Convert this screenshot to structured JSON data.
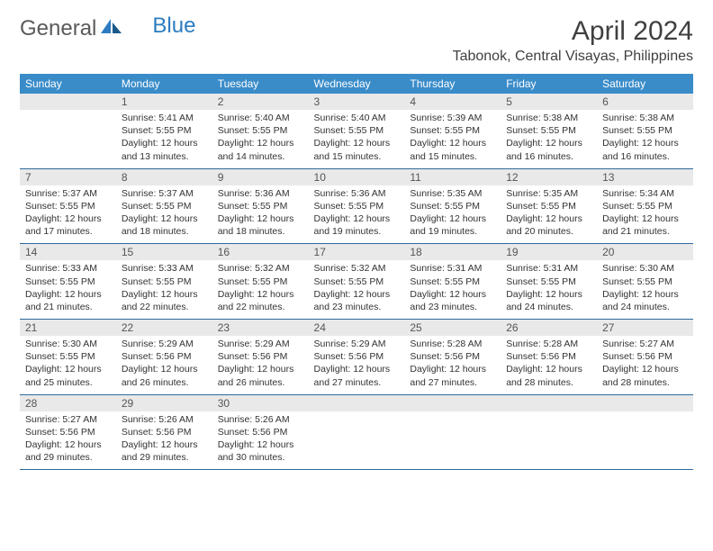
{
  "brand": {
    "part1": "General",
    "part2": "Blue"
  },
  "title": "April 2024",
  "location": "Tabonok, Central Visayas, Philippines",
  "colors": {
    "header_bg": "#3a8cc9",
    "header_text": "#ffffff",
    "daynum_bg": "#e9e9e9",
    "row_border": "#2d6a9e",
    "logo_gray": "#5a5a5a",
    "logo_blue": "#2d7cc0"
  },
  "weekdays": [
    "Sunday",
    "Monday",
    "Tuesday",
    "Wednesday",
    "Thursday",
    "Friday",
    "Saturday"
  ],
  "weeks": [
    {
      "nums": [
        "",
        "1",
        "2",
        "3",
        "4",
        "5",
        "6"
      ],
      "cells": [
        null,
        {
          "sunrise": "5:41 AM",
          "sunset": "5:55 PM",
          "dl": "12 hours and 13 minutes."
        },
        {
          "sunrise": "5:40 AM",
          "sunset": "5:55 PM",
          "dl": "12 hours and 14 minutes."
        },
        {
          "sunrise": "5:40 AM",
          "sunset": "5:55 PM",
          "dl": "12 hours and 15 minutes."
        },
        {
          "sunrise": "5:39 AM",
          "sunset": "5:55 PM",
          "dl": "12 hours and 15 minutes."
        },
        {
          "sunrise": "5:38 AM",
          "sunset": "5:55 PM",
          "dl": "12 hours and 16 minutes."
        },
        {
          "sunrise": "5:38 AM",
          "sunset": "5:55 PM",
          "dl": "12 hours and 16 minutes."
        }
      ]
    },
    {
      "nums": [
        "7",
        "8",
        "9",
        "10",
        "11",
        "12",
        "13"
      ],
      "cells": [
        {
          "sunrise": "5:37 AM",
          "sunset": "5:55 PM",
          "dl": "12 hours and 17 minutes."
        },
        {
          "sunrise": "5:37 AM",
          "sunset": "5:55 PM",
          "dl": "12 hours and 18 minutes."
        },
        {
          "sunrise": "5:36 AM",
          "sunset": "5:55 PM",
          "dl": "12 hours and 18 minutes."
        },
        {
          "sunrise": "5:36 AM",
          "sunset": "5:55 PM",
          "dl": "12 hours and 19 minutes."
        },
        {
          "sunrise": "5:35 AM",
          "sunset": "5:55 PM",
          "dl": "12 hours and 19 minutes."
        },
        {
          "sunrise": "5:35 AM",
          "sunset": "5:55 PM",
          "dl": "12 hours and 20 minutes."
        },
        {
          "sunrise": "5:34 AM",
          "sunset": "5:55 PM",
          "dl": "12 hours and 21 minutes."
        }
      ]
    },
    {
      "nums": [
        "14",
        "15",
        "16",
        "17",
        "18",
        "19",
        "20"
      ],
      "cells": [
        {
          "sunrise": "5:33 AM",
          "sunset": "5:55 PM",
          "dl": "12 hours and 21 minutes."
        },
        {
          "sunrise": "5:33 AM",
          "sunset": "5:55 PM",
          "dl": "12 hours and 22 minutes."
        },
        {
          "sunrise": "5:32 AM",
          "sunset": "5:55 PM",
          "dl": "12 hours and 22 minutes."
        },
        {
          "sunrise": "5:32 AM",
          "sunset": "5:55 PM",
          "dl": "12 hours and 23 minutes."
        },
        {
          "sunrise": "5:31 AM",
          "sunset": "5:55 PM",
          "dl": "12 hours and 23 minutes."
        },
        {
          "sunrise": "5:31 AM",
          "sunset": "5:55 PM",
          "dl": "12 hours and 24 minutes."
        },
        {
          "sunrise": "5:30 AM",
          "sunset": "5:55 PM",
          "dl": "12 hours and 24 minutes."
        }
      ]
    },
    {
      "nums": [
        "21",
        "22",
        "23",
        "24",
        "25",
        "26",
        "27"
      ],
      "cells": [
        {
          "sunrise": "5:30 AM",
          "sunset": "5:55 PM",
          "dl": "12 hours and 25 minutes."
        },
        {
          "sunrise": "5:29 AM",
          "sunset": "5:56 PM",
          "dl": "12 hours and 26 minutes."
        },
        {
          "sunrise": "5:29 AM",
          "sunset": "5:56 PM",
          "dl": "12 hours and 26 minutes."
        },
        {
          "sunrise": "5:29 AM",
          "sunset": "5:56 PM",
          "dl": "12 hours and 27 minutes."
        },
        {
          "sunrise": "5:28 AM",
          "sunset": "5:56 PM",
          "dl": "12 hours and 27 minutes."
        },
        {
          "sunrise": "5:28 AM",
          "sunset": "5:56 PM",
          "dl": "12 hours and 28 minutes."
        },
        {
          "sunrise": "5:27 AM",
          "sunset": "5:56 PM",
          "dl": "12 hours and 28 minutes."
        }
      ]
    },
    {
      "nums": [
        "28",
        "29",
        "30",
        "",
        "",
        "",
        ""
      ],
      "cells": [
        {
          "sunrise": "5:27 AM",
          "sunset": "5:56 PM",
          "dl": "12 hours and 29 minutes."
        },
        {
          "sunrise": "5:26 AM",
          "sunset": "5:56 PM",
          "dl": "12 hours and 29 minutes."
        },
        {
          "sunrise": "5:26 AM",
          "sunset": "5:56 PM",
          "dl": "12 hours and 30 minutes."
        },
        null,
        null,
        null,
        null
      ]
    }
  ]
}
